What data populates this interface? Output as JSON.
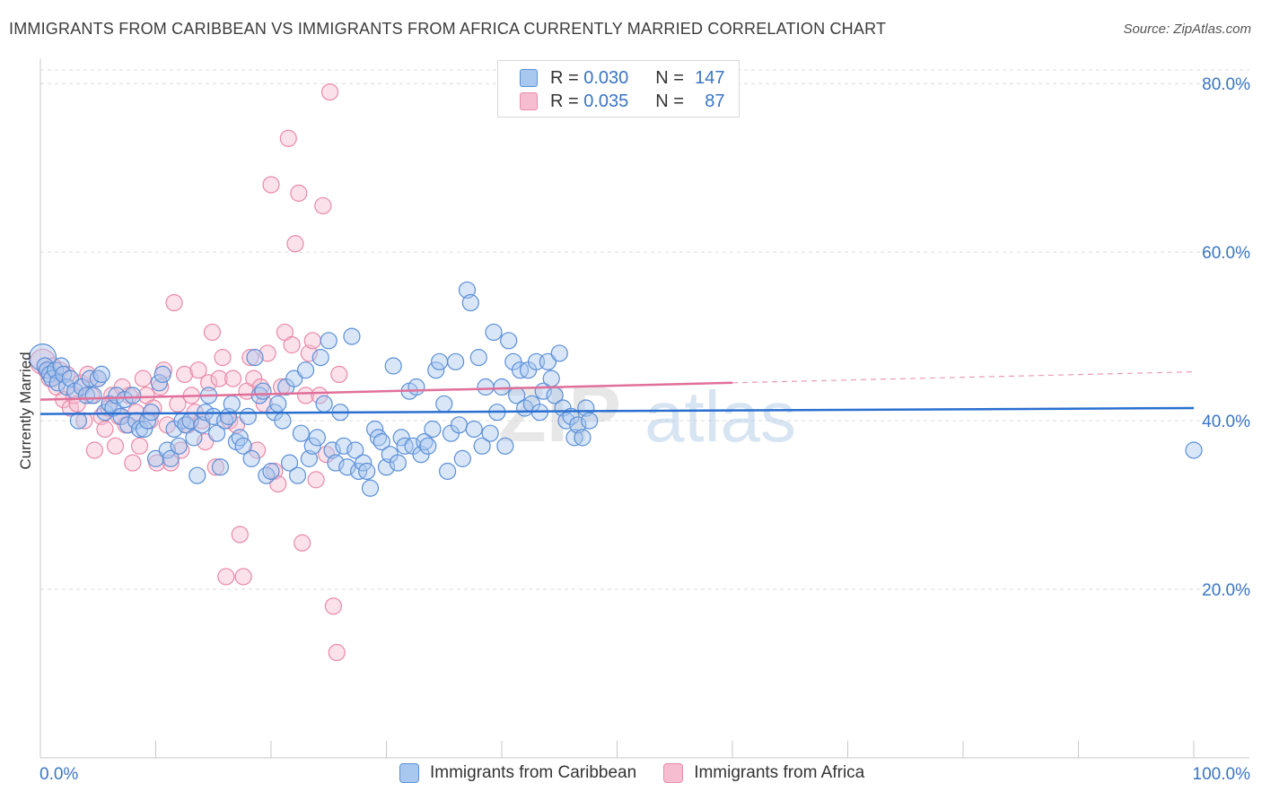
{
  "header": {
    "title": "IMMIGRANTS FROM CARIBBEAN VS IMMIGRANTS FROM AFRICA CURRENTLY MARRIED CORRELATION CHART",
    "source": "Source: ZipAtlas.com"
  },
  "legend": {
    "rows": [
      {
        "r_label": "R =",
        "r_value": "0.030",
        "n_label": "N =",
        "n_value": "147"
      },
      {
        "r_label": "R =",
        "r_value": "0.035",
        "n_label": "N =",
        "n_value": "87"
      }
    ]
  },
  "watermark": {
    "part1": "ZIP",
    "part2": "atlas"
  },
  "colors": {
    "caribbean_fill": "#a9c8f0",
    "caribbean_stroke": "#5b8fd6",
    "caribbean_line": "#2a6fd0",
    "africa_fill": "#f6bdd0",
    "africa_stroke": "#e88aa8",
    "africa_line": "#e0709a",
    "axis_text": "#3a75c4",
    "grid": "#dcdcdc"
  },
  "chart_data": {
    "type": "scatter",
    "title": "IMMIGRANTS FROM CARIBBEAN VS IMMIGRANTS FROM AFRICA CURRENTLY MARRIED CORRELATION CHART",
    "xlabel": "",
    "ylabel": "Currently Married",
    "xlim": [
      0,
      100
    ],
    "ylim": [
      0,
      83
    ],
    "x_tick_labels": [
      "0.0%",
      "100.0%"
    ],
    "y_ticks": [
      20,
      40,
      60,
      80
    ],
    "y_tick_labels": [
      "20.0%",
      "40.0%",
      "60.0%",
      "80.0%"
    ],
    "grid": "horizontal dashed",
    "legend_position": "bottom",
    "series": [
      {
        "name": "Immigrants from Caribbean",
        "trend": {
          "x": [
            0,
            100
          ],
          "y": [
            40.8,
            41.5
          ]
        },
        "points": [
          [
            0.2,
            47.5
          ],
          [
            0.4,
            46.5
          ],
          [
            0.6,
            46
          ],
          [
            0.8,
            45.5
          ],
          [
            1,
            45
          ],
          [
            1.3,
            46
          ],
          [
            1.5,
            44.5
          ],
          [
            1.8,
            46.5
          ],
          [
            2,
            45.5
          ],
          [
            2.3,
            44
          ],
          [
            2.6,
            45
          ],
          [
            3,
            43.5
          ],
          [
            3.3,
            40
          ],
          [
            3.6,
            44
          ],
          [
            4,
            43
          ],
          [
            4.3,
            45
          ],
          [
            4.6,
            43
          ],
          [
            5,
            45
          ],
          [
            5.3,
            45.5
          ],
          [
            5.6,
            41
          ],
          [
            6,
            42
          ],
          [
            6.3,
            41.5
          ],
          [
            6.6,
            43
          ],
          [
            7,
            40.5
          ],
          [
            7.3,
            42.5
          ],
          [
            7.6,
            39.5
          ],
          [
            8,
            43
          ],
          [
            8.3,
            40
          ],
          [
            8.6,
            39
          ],
          [
            9,
            39
          ],
          [
            9.3,
            40
          ],
          [
            9.6,
            41
          ],
          [
            10,
            35.5
          ],
          [
            10.3,
            44.5
          ],
          [
            10.6,
            45.5
          ],
          [
            11,
            36.5
          ],
          [
            11.3,
            35.5
          ],
          [
            11.6,
            39
          ],
          [
            12,
            37
          ],
          [
            12.3,
            40
          ],
          [
            12.6,
            39.5
          ],
          [
            13,
            40
          ],
          [
            13.3,
            38
          ],
          [
            13.6,
            33.5
          ],
          [
            14,
            39.5
          ],
          [
            14.3,
            41
          ],
          [
            14.6,
            43
          ],
          [
            15,
            40.5
          ],
          [
            15.3,
            38.5
          ],
          [
            15.6,
            34.5
          ],
          [
            16,
            40
          ],
          [
            16.3,
            40.5
          ],
          [
            16.6,
            42
          ],
          [
            17,
            37.5
          ],
          [
            17.3,
            38
          ],
          [
            17.6,
            37
          ],
          [
            18,
            40.5
          ],
          [
            18.3,
            35.5
          ],
          [
            18.6,
            47.5
          ],
          [
            19,
            43
          ],
          [
            19.3,
            43.5
          ],
          [
            19.6,
            33.5
          ],
          [
            20,
            34
          ],
          [
            20.3,
            41
          ],
          [
            20.6,
            42
          ],
          [
            21,
            40
          ],
          [
            21.3,
            44
          ],
          [
            21.6,
            35
          ],
          [
            22,
            45
          ],
          [
            22.3,
            33.5
          ],
          [
            22.6,
            38.5
          ],
          [
            23,
            46
          ],
          [
            23.3,
            35.5
          ],
          [
            23.6,
            37
          ],
          [
            24,
            38
          ],
          [
            24.3,
            47.5
          ],
          [
            24.6,
            42
          ],
          [
            25,
            49.5
          ],
          [
            25.3,
            36.5
          ],
          [
            25.6,
            35
          ],
          [
            26,
            41
          ],
          [
            26.3,
            37
          ],
          [
            26.6,
            34.5
          ],
          [
            27,
            50
          ],
          [
            27.3,
            36.5
          ],
          [
            27.6,
            34
          ],
          [
            28,
            35
          ],
          [
            28.3,
            34
          ],
          [
            28.6,
            32
          ],
          [
            29,
            39
          ],
          [
            29.3,
            38
          ],
          [
            29.6,
            37.5
          ],
          [
            30,
            34.5
          ],
          [
            30.3,
            36
          ],
          [
            30.6,
            46.5
          ],
          [
            31,
            35
          ],
          [
            31.3,
            38
          ],
          [
            31.6,
            37
          ],
          [
            32,
            43.5
          ],
          [
            32.3,
            37
          ],
          [
            32.6,
            44
          ],
          [
            33,
            36
          ],
          [
            33.3,
            37.5
          ],
          [
            33.6,
            37
          ],
          [
            34,
            39
          ],
          [
            34.3,
            46
          ],
          [
            34.6,
            47
          ],
          [
            35,
            42
          ],
          [
            35.3,
            34
          ],
          [
            35.6,
            38.5
          ],
          [
            36,
            47
          ],
          [
            36.3,
            39.5
          ],
          [
            36.6,
            35.5
          ],
          [
            37,
            55.5
          ],
          [
            37.3,
            54
          ],
          [
            37.6,
            39
          ],
          [
            38,
            47.5
          ],
          [
            38.3,
            37
          ],
          [
            38.6,
            44
          ],
          [
            39,
            38.5
          ],
          [
            39.3,
            50.5
          ],
          [
            39.6,
            41
          ],
          [
            40,
            44
          ],
          [
            40.3,
            37
          ],
          [
            40.6,
            49.5
          ],
          [
            41,
            47
          ],
          [
            41.3,
            43
          ],
          [
            41.6,
            46
          ],
          [
            42,
            41.5
          ],
          [
            42.3,
            46
          ],
          [
            42.6,
            42
          ],
          [
            43,
            47
          ],
          [
            43.3,
            41
          ],
          [
            43.6,
            43.5
          ],
          [
            44,
            47
          ],
          [
            44.3,
            45
          ],
          [
            44.6,
            43
          ],
          [
            45,
            48
          ],
          [
            45.3,
            41.5
          ],
          [
            45.6,
            40
          ],
          [
            46,
            40.5
          ],
          [
            46.3,
            38
          ],
          [
            46.6,
            39.5
          ],
          [
            47,
            38
          ],
          [
            47.3,
            41.5
          ],
          [
            47.6,
            40
          ],
          [
            100,
            36.5
          ]
        ]
      },
      {
        "name": "Immigrants from Africa",
        "trend": {
          "x": [
            0,
            60
          ],
          "y": [
            42.5,
            44.5
          ],
          "dashed_extension": {
            "x": [
              60,
              100
            ],
            "y": [
              44.5,
              45.8
            ]
          }
        },
        "points": [
          [
            0.2,
            47
          ],
          [
            0.5,
            46
          ],
          [
            0.8,
            45
          ],
          [
            1.1,
            46.5
          ],
          [
            1.4,
            44
          ],
          [
            1.7,
            46
          ],
          [
            2,
            42.5
          ],
          [
            2.3,
            45.5
          ],
          [
            2.6,
            41.5
          ],
          [
            2.9,
            43
          ],
          [
            3.2,
            42
          ],
          [
            3.5,
            44.5
          ],
          [
            3.8,
            40
          ],
          [
            4.1,
            45.5
          ],
          [
            4.4,
            43
          ],
          [
            4.7,
            36.5
          ],
          [
            5,
            45
          ],
          [
            5.3,
            40.5
          ],
          [
            5.6,
            39
          ],
          [
            5.9,
            41.5
          ],
          [
            6.2,
            43
          ],
          [
            6.5,
            37
          ],
          [
            6.8,
            40.5
          ],
          [
            7.1,
            44
          ],
          [
            7.4,
            39.5
          ],
          [
            7.7,
            43
          ],
          [
            8,
            35
          ],
          [
            8.3,
            41
          ],
          [
            8.6,
            37
          ],
          [
            8.9,
            45
          ],
          [
            9.2,
            43
          ],
          [
            9.5,
            40
          ],
          [
            9.8,
            41.5
          ],
          [
            10.1,
            35
          ],
          [
            10.4,
            44
          ],
          [
            10.7,
            46
          ],
          [
            11,
            39.5
          ],
          [
            11.3,
            35
          ],
          [
            11.6,
            54
          ],
          [
            11.9,
            42
          ],
          [
            12.2,
            36.5
          ],
          [
            12.5,
            45.5
          ],
          [
            12.8,
            39.5
          ],
          [
            13.1,
            43
          ],
          [
            13.4,
            41
          ],
          [
            13.7,
            46
          ],
          [
            14,
            40
          ],
          [
            14.3,
            37.5
          ],
          [
            14.6,
            44.5
          ],
          [
            14.9,
            50.5
          ],
          [
            15.2,
            34.5
          ],
          [
            15.5,
            45
          ],
          [
            15.8,
            47.5
          ],
          [
            16.1,
            21.5
          ],
          [
            16.4,
            40
          ],
          [
            16.7,
            45
          ],
          [
            17,
            39.5
          ],
          [
            17.3,
            26.5
          ],
          [
            17.6,
            21.5
          ],
          [
            17.9,
            43.5
          ],
          [
            18.2,
            47.5
          ],
          [
            18.5,
            45
          ],
          [
            18.8,
            36.5
          ],
          [
            19.1,
            44
          ],
          [
            19.4,
            42
          ],
          [
            19.7,
            48
          ],
          [
            20,
            68
          ],
          [
            20.3,
            34
          ],
          [
            20.6,
            32.5
          ],
          [
            20.9,
            44
          ],
          [
            21.2,
            50.5
          ],
          [
            21.5,
            73.5
          ],
          [
            21.8,
            49
          ],
          [
            22.1,
            61
          ],
          [
            22.4,
            67
          ],
          [
            22.7,
            25.5
          ],
          [
            23,
            43
          ],
          [
            23.3,
            48
          ],
          [
            23.6,
            49.5
          ],
          [
            23.9,
            33
          ],
          [
            24.2,
            43
          ],
          [
            24.5,
            65.5
          ],
          [
            24.8,
            36
          ],
          [
            25.1,
            79
          ],
          [
            25.4,
            18
          ],
          [
            25.7,
            12.5
          ],
          [
            25.9,
            45.5
          ]
        ]
      }
    ]
  }
}
